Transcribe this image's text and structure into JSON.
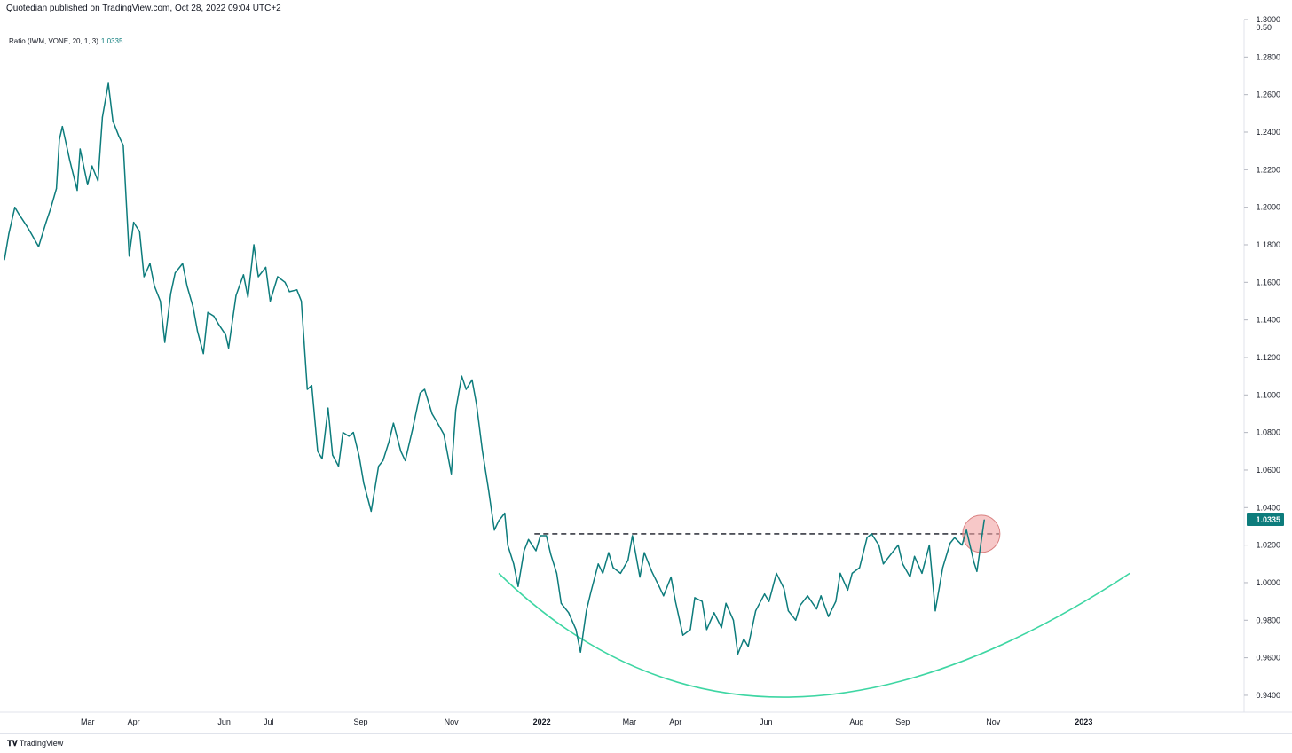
{
  "header": {
    "title": "Quotedian published on TradingView.com, Oct 28, 2022 09:04 UTC+2"
  },
  "legend": {
    "label": "Ratio (IWM, VONE, 20, 1, 3)",
    "value": "1.0335"
  },
  "footer": {
    "brand": "TradingView"
  },
  "colors": {
    "line": "#0d7c7c",
    "arc": "#3ed6a3",
    "highlight": "#f2a3a3",
    "label_bg": "#0d7c7c"
  },
  "chart_data": {
    "type": "line",
    "title": "",
    "series": [
      {
        "name": "Ratio (IWM, VONE, 20, 1, 3)",
        "points": [
          [
            "2021-01-04",
            1.172
          ],
          [
            "2021-01-07",
            1.186
          ],
          [
            "2021-01-11",
            1.2
          ],
          [
            "2021-01-14",
            1.196
          ],
          [
            "2021-01-19",
            1.19
          ],
          [
            "2021-01-22",
            1.186
          ],
          [
            "2021-01-27",
            1.179
          ],
          [
            "2021-02-01",
            1.192
          ],
          [
            "2021-02-04",
            1.199
          ],
          [
            "2021-02-08",
            1.21
          ],
          [
            "2021-02-10",
            1.236
          ],
          [
            "2021-02-12",
            1.243
          ],
          [
            "2021-02-17",
            1.225
          ],
          [
            "2021-02-22",
            1.209
          ],
          [
            "2021-02-24",
            1.231
          ],
          [
            "2021-03-01",
            1.212
          ],
          [
            "2021-03-04",
            1.222
          ],
          [
            "2021-03-08",
            1.214
          ],
          [
            "2021-03-11",
            1.248
          ],
          [
            "2021-03-15",
            1.266
          ],
          [
            "2021-03-18",
            1.246
          ],
          [
            "2021-03-22",
            1.238
          ],
          [
            "2021-03-25",
            1.233
          ],
          [
            "2021-03-29",
            1.174
          ],
          [
            "2021-04-01",
            1.192
          ],
          [
            "2021-04-05",
            1.187
          ],
          [
            "2021-04-08",
            1.163
          ],
          [
            "2021-04-12",
            1.17
          ],
          [
            "2021-04-15",
            1.158
          ],
          [
            "2021-04-19",
            1.15
          ],
          [
            "2021-04-22",
            1.128
          ],
          [
            "2021-04-26",
            1.154
          ],
          [
            "2021-04-29",
            1.165
          ],
          [
            "2021-05-04",
            1.17
          ],
          [
            "2021-05-07",
            1.158
          ],
          [
            "2021-05-11",
            1.147
          ],
          [
            "2021-05-14",
            1.134
          ],
          [
            "2021-05-18",
            1.122
          ],
          [
            "2021-05-21",
            1.144
          ],
          [
            "2021-05-25",
            1.142
          ],
          [
            "2021-05-28",
            1.138
          ],
          [
            "2021-06-02",
            1.132
          ],
          [
            "2021-06-04",
            1.125
          ],
          [
            "2021-06-09",
            1.153
          ],
          [
            "2021-06-14",
            1.164
          ],
          [
            "2021-06-17",
            1.152
          ],
          [
            "2021-06-21",
            1.18
          ],
          [
            "2021-06-24",
            1.163
          ],
          [
            "2021-06-29",
            1.168
          ],
          [
            "2021-07-02",
            1.15
          ],
          [
            "2021-07-07",
            1.163
          ],
          [
            "2021-07-12",
            1.16
          ],
          [
            "2021-07-15",
            1.155
          ],
          [
            "2021-07-20",
            1.156
          ],
          [
            "2021-07-23",
            1.15
          ],
          [
            "2021-07-27",
            1.103
          ],
          [
            "2021-07-30",
            1.105
          ],
          [
            "2021-08-03",
            1.07
          ],
          [
            "2021-08-06",
            1.066
          ],
          [
            "2021-08-10",
            1.093
          ],
          [
            "2021-08-13",
            1.068
          ],
          [
            "2021-08-17",
            1.062
          ],
          [
            "2021-08-20",
            1.08
          ],
          [
            "2021-08-24",
            1.078
          ],
          [
            "2021-08-27",
            1.08
          ],
          [
            "2021-08-31",
            1.067
          ],
          [
            "2021-09-03",
            1.053
          ],
          [
            "2021-09-08",
            1.038
          ],
          [
            "2021-09-13",
            1.062
          ],
          [
            "2021-09-16",
            1.065
          ],
          [
            "2021-09-20",
            1.075
          ],
          [
            "2021-09-23",
            1.085
          ],
          [
            "2021-09-28",
            1.07
          ],
          [
            "2021-10-01",
            1.065
          ],
          [
            "2021-10-06",
            1.082
          ],
          [
            "2021-10-11",
            1.101
          ],
          [
            "2021-10-14",
            1.103
          ],
          [
            "2021-10-19",
            1.09
          ],
          [
            "2021-10-22",
            1.086
          ],
          [
            "2021-10-27",
            1.079
          ],
          [
            "2021-11-01",
            1.058
          ],
          [
            "2021-11-04",
            1.092
          ],
          [
            "2021-11-08",
            1.11
          ],
          [
            "2021-11-11",
            1.103
          ],
          [
            "2021-11-15",
            1.108
          ],
          [
            "2021-11-18",
            1.095
          ],
          [
            "2021-11-22",
            1.07
          ],
          [
            "2021-11-26",
            1.05
          ],
          [
            "2021-11-30",
            1.028
          ],
          [
            "2021-12-03",
            1.033
          ],
          [
            "2021-12-07",
            1.037
          ],
          [
            "2021-12-09",
            1.02
          ],
          [
            "2021-12-13",
            1.01
          ],
          [
            "2021-12-16",
            0.998
          ],
          [
            "2021-12-20",
            1.017
          ],
          [
            "2021-12-23",
            1.023
          ],
          [
            "2021-12-28",
            1.017
          ],
          [
            "2021-12-31",
            1.025
          ],
          [
            "2022-01-04",
            1.025
          ],
          [
            "2022-01-07",
            1.015
          ],
          [
            "2022-01-11",
            1.005
          ],
          [
            "2022-01-14",
            0.989
          ],
          [
            "2022-01-19",
            0.984
          ],
          [
            "2022-01-24",
            0.975
          ],
          [
            "2022-01-27",
            0.963
          ],
          [
            "2022-01-31",
            0.985
          ],
          [
            "2022-02-03",
            0.995
          ],
          [
            "2022-02-08",
            1.01
          ],
          [
            "2022-02-11",
            1.005
          ],
          [
            "2022-02-15",
            1.016
          ],
          [
            "2022-02-18",
            1.008
          ],
          [
            "2022-02-23",
            1.005
          ],
          [
            "2022-02-28",
            1.012
          ],
          [
            "2022-03-03",
            1.025
          ],
          [
            "2022-03-08",
            1.003
          ],
          [
            "2022-03-11",
            1.016
          ],
          [
            "2022-03-16",
            1.006
          ],
          [
            "2022-03-21",
            0.998
          ],
          [
            "2022-03-24",
            0.993
          ],
          [
            "2022-03-29",
            1.003
          ],
          [
            "2022-04-01",
            0.99
          ],
          [
            "2022-04-06",
            0.972
          ],
          [
            "2022-04-11",
            0.975
          ],
          [
            "2022-04-14",
            0.992
          ],
          [
            "2022-04-19",
            0.99
          ],
          [
            "2022-04-22",
            0.975
          ],
          [
            "2022-04-27",
            0.984
          ],
          [
            "2022-05-02",
            0.976
          ],
          [
            "2022-05-05",
            0.989
          ],
          [
            "2022-05-10",
            0.98
          ],
          [
            "2022-05-13",
            0.962
          ],
          [
            "2022-05-17",
            0.97
          ],
          [
            "2022-05-20",
            0.966
          ],
          [
            "2022-05-25",
            0.985
          ],
          [
            "2022-05-31",
            0.994
          ],
          [
            "2022-06-03",
            0.99
          ],
          [
            "2022-06-08",
            1.005
          ],
          [
            "2022-06-13",
            0.997
          ],
          [
            "2022-06-16",
            0.985
          ],
          [
            "2022-06-21",
            0.98
          ],
          [
            "2022-06-24",
            0.988
          ],
          [
            "2022-06-29",
            0.993
          ],
          [
            "2022-07-05",
            0.986
          ],
          [
            "2022-07-08",
            0.993
          ],
          [
            "2022-07-13",
            0.982
          ],
          [
            "2022-07-18",
            0.99
          ],
          [
            "2022-07-21",
            1.005
          ],
          [
            "2022-07-26",
            0.996
          ],
          [
            "2022-07-29",
            1.005
          ],
          [
            "2022-08-03",
            1.008
          ],
          [
            "2022-08-08",
            1.024
          ],
          [
            "2022-08-11",
            1.026
          ],
          [
            "2022-08-16",
            1.02
          ],
          [
            "2022-08-19",
            1.01
          ],
          [
            "2022-08-24",
            1.015
          ],
          [
            "2022-08-29",
            1.02
          ],
          [
            "2022-09-01",
            1.01
          ],
          [
            "2022-09-06",
            1.003
          ],
          [
            "2022-09-09",
            1.014
          ],
          [
            "2022-09-14",
            1.005
          ],
          [
            "2022-09-19",
            1.02
          ],
          [
            "2022-09-23",
            0.985
          ],
          [
            "2022-09-28",
            1.008
          ],
          [
            "2022-10-03",
            1.021
          ],
          [
            "2022-10-06",
            1.024
          ],
          [
            "2022-10-11",
            1.02
          ],
          [
            "2022-10-14",
            1.028
          ],
          [
            "2022-10-19",
            1.011
          ],
          [
            "2022-10-21",
            1.006
          ],
          [
            "2022-10-26",
            1.0335
          ]
        ]
      }
    ],
    "annotations": {
      "resistance_level": 1.026,
      "arc": {
        "start": [
          "2021-12-03",
          1.005
        ],
        "bottom": [
          "2022-05-23",
          0.939
        ],
        "end": [
          "2023-02-01",
          1.005
        ]
      },
      "circle_at": [
        "2022-10-24",
        1.026
      ]
    },
    "xlim": [
      "2021-01-01",
      "2023-04-19"
    ],
    "ylim": [
      0.931,
      1.3
    ],
    "x_ticks": [
      {
        "label": "Mar",
        "date": "2021-03-01",
        "bold": false
      },
      {
        "label": "Apr",
        "date": "2021-04-01",
        "bold": false
      },
      {
        "label": "Jun",
        "date": "2021-06-01",
        "bold": false
      },
      {
        "label": "Jul",
        "date": "2021-07-01",
        "bold": false
      },
      {
        "label": "Sep",
        "date": "2021-09-01",
        "bold": false
      },
      {
        "label": "Nov",
        "date": "2021-11-01",
        "bold": false
      },
      {
        "label": "2022",
        "date": "2022-01-01",
        "bold": true
      },
      {
        "label": "Mar",
        "date": "2022-03-01",
        "bold": false
      },
      {
        "label": "Apr",
        "date": "2022-04-01",
        "bold": false
      },
      {
        "label": "Jun",
        "date": "2022-06-01",
        "bold": false
      },
      {
        "label": "Aug",
        "date": "2022-08-01",
        "bold": false
      },
      {
        "label": "Sep",
        "date": "2022-09-01",
        "bold": false
      },
      {
        "label": "Nov",
        "date": "2022-11-01",
        "bold": false
      },
      {
        "label": "2023",
        "date": "2023-01-01",
        "bold": true
      }
    ],
    "y_ticks": [
      "0.9400",
      "0.9600",
      "0.9800",
      "1.0000",
      "1.0200",
      "1.0400",
      "1.0600",
      "1.0800",
      "1.1000",
      "1.1200",
      "1.1400",
      "1.1600",
      "1.1800",
      "1.2000",
      "1.2200",
      "1.2400",
      "1.2600",
      "1.2800",
      "1.3000"
    ],
    "y_extra_label": "0.50",
    "grid": false,
    "last_value_label": "1.0335"
  }
}
